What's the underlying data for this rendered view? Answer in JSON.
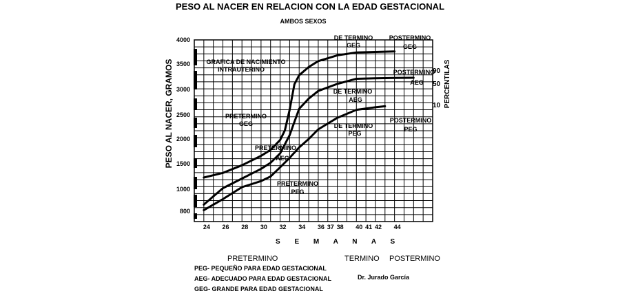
{
  "colors": {
    "line": "#000000",
    "background": "#ffffff"
  },
  "chart_data": {
    "type": "line",
    "title": "PESO AL NACER EN RELACION CON LA EDAD GESTACIONAL",
    "subtitle": "AMBOS SEXOS",
    "xlabel": "S E M A N A S",
    "ylabel": "PESO AL NACER, GRAMOS",
    "ylabel_right": "PERCENTILAS",
    "xlim": [
      23,
      48
    ],
    "ylim": [
      650,
      4000
    ],
    "x_ticks": [
      "24",
      "26",
      "28",
      "30",
      "32",
      "34",
      "36",
      "37",
      "38",
      "40",
      "41",
      "42",
      "44"
    ],
    "y_ticks": [
      "800",
      "1000",
      "1500",
      "2000",
      "2500",
      "3000",
      "3500",
      "4000"
    ],
    "percentile_ticks": [
      "90",
      "50",
      "10"
    ],
    "series": [
      {
        "name": "90",
        "x": [
          24,
          26,
          28,
          30,
          31,
          32,
          32.5,
          33,
          33.5,
          34,
          35,
          36,
          38,
          40,
          42,
          44
        ],
        "y": [
          1230,
          1320,
          1470,
          1660,
          1780,
          1980,
          2180,
          2600,
          3100,
          3280,
          3440,
          3560,
          3680,
          3740,
          3750,
          3760
        ]
      },
      {
        "name": "50",
        "x": [
          24,
          26,
          28,
          30,
          31,
          32,
          33,
          34,
          35,
          36,
          38,
          40,
          42,
          44,
          46
        ],
        "y": [
          860,
          1020,
          1210,
          1400,
          1520,
          1710,
          2080,
          2620,
          2820,
          2970,
          3110,
          3210,
          3220,
          3225,
          3230
        ]
      },
      {
        "name": "10",
        "x": [
          24,
          26,
          28,
          30,
          31,
          32,
          33,
          34,
          35,
          36,
          38,
          40,
          42,
          43
        ],
        "y": [
          810,
          910,
          1040,
          1160,
          1250,
          1430,
          1620,
          1830,
          2000,
          2200,
          2440,
          2600,
          2650,
          2670
        ]
      }
    ],
    "annotations": [
      "GRAFICA DE NACIMIENTO",
      "INTRAUTERINO",
      "DE TERMINO",
      "GEG",
      "POSTERMINO",
      "GEG",
      "POSTERMINO",
      "AEG",
      "DE TERMINO",
      "AEG",
      "PRETERMINO",
      "GEG",
      "PRETERMINO",
      "AEG",
      "DE TERMINO",
      "PEG",
      "POSTERMINO",
      "PEG",
      "PRETERMINO",
      "PEG"
    ]
  },
  "footer": {
    "pretermino": "PRETERMINO",
    "termino": "TERMINO",
    "postermino": "POSTERMINO",
    "legend": [
      "PEG- PEQUEÑO PARA EDAD GESTACIONAL",
      "AEG- ADECUADO PARA EDAD GESTACIONAL",
      "GEG- GRANDE PARA EDAD GESTACIONAL"
    ],
    "author": "Dr. Jurado García"
  }
}
